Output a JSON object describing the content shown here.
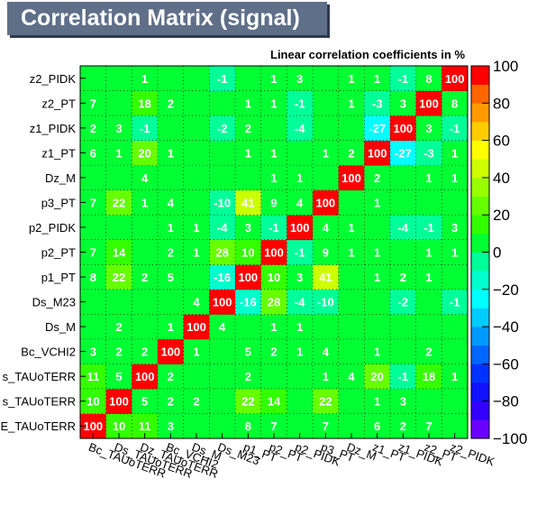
{
  "title": "Correlation Matrix (signal)",
  "subtitle": "Linear correlation coefficients in %",
  "chart_data": {
    "type": "heatmap",
    "x_labels": [
      "Bc_TAUoTERR",
      "Ds_TAUoTERR",
      "Dz_TAUoTERR",
      "Bc_VCHI2",
      "Ds_M",
      "Ds_M23",
      "p1_PT",
      "p2_PT",
      "p2_PIDK",
      "p3_PT",
      "Dz_M",
      "z1_PT",
      "z1_PIDK",
      "z2_PT",
      "z2_PIDK"
    ],
    "y_labels_visible": [
      "E_TAUoTERR",
      "s_TAUoTERR",
      "s_TAUoTERR",
      "Bc_VCHI2",
      "Ds_M",
      "Ds_M23",
      "p1_PT",
      "p2_PT",
      "p2_PIDK",
      "p3_PT",
      "Dz_M",
      "z1_PT",
      "z1_PIDK",
      "z2_PT",
      "z2_PIDK"
    ],
    "values": [
      [
        100,
        10,
        11,
        3,
        0,
        0,
        8,
        7,
        0,
        7,
        0,
        6,
        2,
        7,
        0
      ],
      [
        10,
        100,
        5,
        2,
        2,
        0,
        22,
        14,
        0,
        22,
        0,
        1,
        3,
        0,
        0
      ],
      [
        11,
        5,
        100,
        2,
        0,
        0,
        2,
        0,
        0,
        1,
        4,
        20,
        -1,
        18,
        1
      ],
      [
        3,
        2,
        2,
        100,
        1,
        0,
        5,
        2,
        1,
        4,
        0,
        1,
        0,
        2,
        0
      ],
      [
        0,
        2,
        0,
        1,
        100,
        4,
        0,
        1,
        1,
        0,
        0,
        0,
        0,
        0,
        0
      ],
      [
        0,
        0,
        0,
        0,
        4,
        100,
        -16,
        28,
        -4,
        -10,
        0,
        0,
        -2,
        0,
        -1
      ],
      [
        8,
        22,
        2,
        5,
        0,
        -16,
        100,
        10,
        3,
        41,
        0,
        1,
        2,
        1,
        0
      ],
      [
        7,
        14,
        0,
        2,
        1,
        28,
        10,
        100,
        -1,
        9,
        1,
        1,
        0,
        1,
        1
      ],
      [
        0,
        0,
        0,
        1,
        1,
        -4,
        3,
        -1,
        100,
        4,
        1,
        0,
        -4,
        -1,
        3
      ],
      [
        7,
        22,
        1,
        4,
        0,
        -10,
        41,
        9,
        4,
        100,
        0,
        1,
        0,
        0,
        0
      ],
      [
        0,
        0,
        4,
        0,
        0,
        0,
        0,
        1,
        1,
        0,
        100,
        2,
        0,
        1,
        1
      ],
      [
        6,
        1,
        20,
        1,
        0,
        0,
        1,
        1,
        0,
        1,
        2,
        100,
        -27,
        -3,
        1
      ],
      [
        2,
        3,
        -1,
        0,
        0,
        -2,
        2,
        0,
        -4,
        0,
        0,
        -27,
        100,
        3,
        -1
      ],
      [
        7,
        0,
        18,
        2,
        0,
        0,
        1,
        1,
        -1,
        0,
        1,
        -3,
        3,
        100,
        8
      ],
      [
        0,
        0,
        1,
        0,
        0,
        -1,
        0,
        1,
        3,
        0,
        1,
        1,
        -1,
        8,
        100
      ]
    ],
    "zlim": [
      -100,
      100
    ],
    "z_ticks": [
      "100",
      "80",
      "60",
      "40",
      "20",
      "0",
      "−20",
      "−40",
      "−60",
      "−80",
      "−100"
    ]
  }
}
